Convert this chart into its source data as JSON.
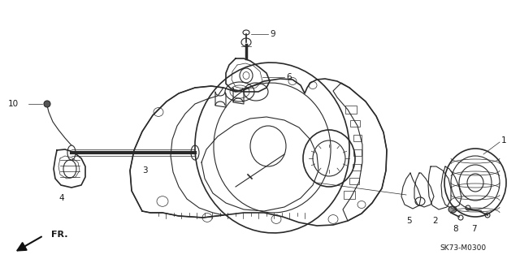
{
  "bg_color": "#f5f5f0",
  "line_color": "#2a2a2a",
  "text_color": "#1a1a1a",
  "diagram_code": "SK73-M0300",
  "fr_label": "FR.",
  "lw_main": 1.2,
  "lw_med": 0.8,
  "lw_thin": 0.5,
  "label_fontsize": 7.5,
  "small_fontsize": 6.5
}
